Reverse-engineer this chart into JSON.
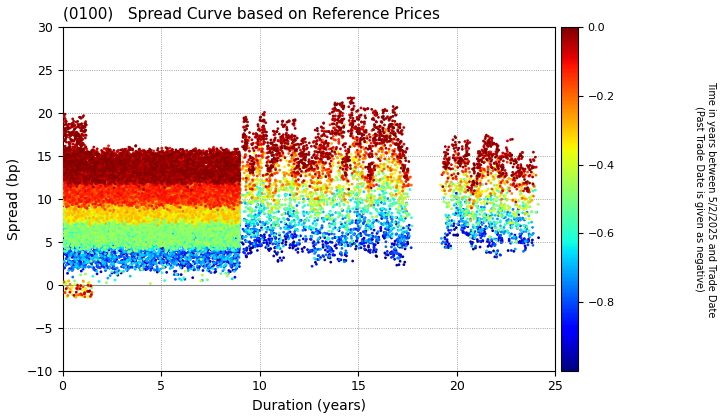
{
  "title": "(0100)   Spread Curve based on Reference Prices",
  "xlabel": "Duration (years)",
  "ylabel": "Spread (bp)",
  "colorbar_label": "Time in years between 5/2/2025 and Trade Date\n(Past Trade Date is given as negative)",
  "xlim": [
    0,
    25
  ],
  "ylim": [
    -10,
    30
  ],
  "xticks": [
    0,
    5,
    10,
    15,
    20,
    25
  ],
  "yticks": [
    -10,
    -5,
    0,
    5,
    10,
    15,
    20,
    25,
    30
  ],
  "cmap": "jet",
  "vmin": -1.0,
  "vmax": 0.0,
  "colorbar_ticks": [
    0.0,
    -0.2,
    -0.4,
    -0.6,
    -0.8
  ],
  "background_color": "#ffffff",
  "grid_color": "#888888",
  "scatter_size": 4,
  "seed": 42
}
